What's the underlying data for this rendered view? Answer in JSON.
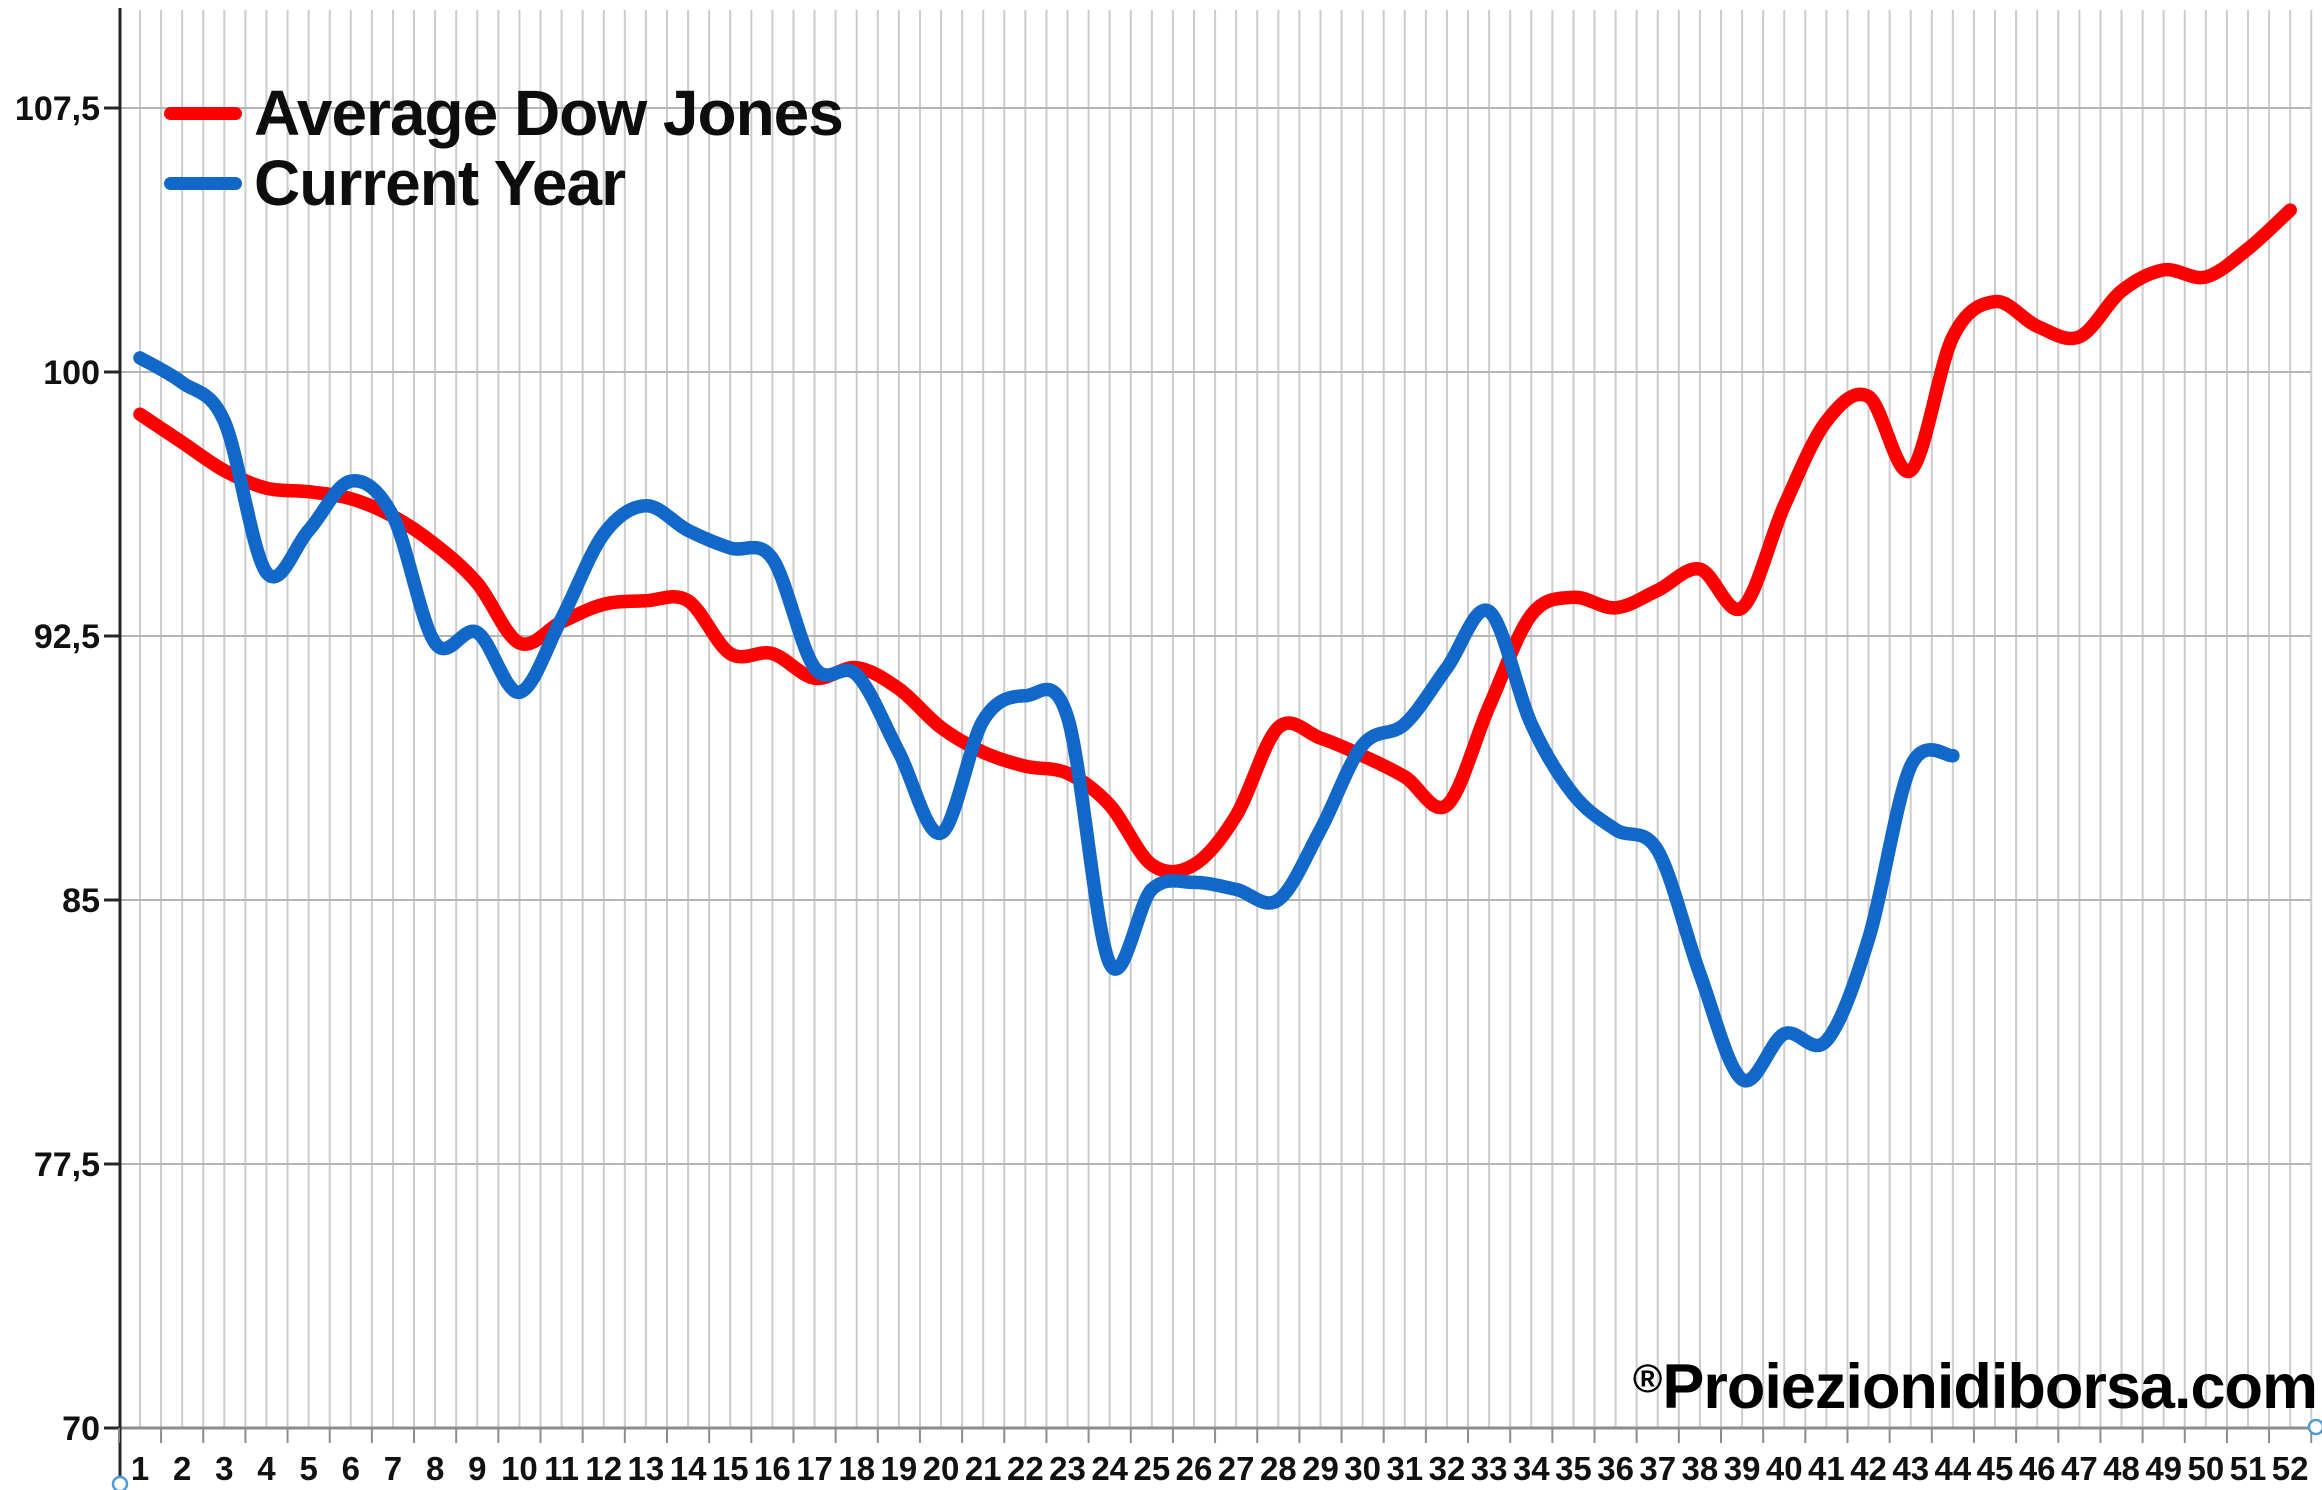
{
  "legend": [
    {
      "label": "Average Dow Jones",
      "color": "#fe0000"
    },
    {
      "label": "Current Year",
      "color": "#1268c9"
    }
  ],
  "watermark_reg": "®",
  "watermark_text": "Proiezionidiborsa.com",
  "chart_data": {
    "type": "line",
    "title": "",
    "xlabel": "",
    "ylabel": "",
    "x": [
      1,
      2,
      3,
      4,
      5,
      6,
      7,
      8,
      9,
      10,
      11,
      12,
      13,
      14,
      15,
      16,
      17,
      18,
      19,
      20,
      21,
      22,
      23,
      24,
      25,
      26,
      27,
      28,
      29,
      30,
      31,
      32,
      33,
      34,
      35,
      36,
      37,
      38,
      39,
      40,
      41,
      42,
      43,
      44,
      45,
      46,
      47,
      48,
      49,
      50,
      51,
      52
    ],
    "x_labels": [
      "1",
      "2",
      "3",
      "4",
      "5",
      "6",
      "7",
      "8",
      "9",
      "10",
      "11",
      "12",
      "13",
      "14",
      "15",
      "16",
      "17",
      "18",
      "19",
      "20",
      "21",
      "22",
      "23",
      "24",
      "25",
      "26",
      "27",
      "28",
      "29",
      "30",
      "31",
      "32",
      "33",
      "34",
      "35",
      "36",
      "37",
      "38",
      "39",
      "40",
      "41",
      "42",
      "43",
      "44",
      "45",
      "46",
      "47",
      "48",
      "49",
      "50",
      "51",
      "52"
    ],
    "series": [
      {
        "name": "Average Dow Jones",
        "color": "#fe0000",
        "values": [
          98.8,
          98.0,
          97.2,
          96.7,
          96.6,
          96.4,
          95.9,
          95.1,
          94.0,
          92.3,
          92.9,
          93.4,
          93.5,
          93.5,
          92.0,
          92.0,
          91.3,
          91.6,
          91.0,
          89.9,
          89.2,
          88.8,
          88.6,
          87.7,
          86.0,
          86.0,
          87.4,
          89.9,
          89.6,
          89.1,
          88.5,
          87.7,
          90.5,
          93.1,
          93.6,
          93.3,
          93.8,
          94.4,
          93.3,
          96.2,
          98.6,
          99.3,
          97.2,
          101.0,
          102.0,
          101.3,
          101.0,
          102.3,
          102.9,
          102.7,
          103.5,
          104.6
        ]
      },
      {
        "name": "Current Year",
        "color": "#1268c9",
        "values": [
          100.4,
          99.7,
          98.6,
          94.3,
          95.5,
          96.9,
          95.9,
          92.3,
          92.6,
          90.9,
          93.0,
          95.4,
          96.2,
          95.5,
          95.0,
          94.7,
          91.6,
          91.4,
          89.2,
          86.9,
          90.1,
          90.8,
          90.2,
          83.2,
          85.3,
          85.5,
          85.3,
          85.0,
          87.0,
          89.4,
          90.0,
          91.6,
          93.2,
          90.0,
          88.0,
          87.0,
          86.4,
          82.9,
          79.9,
          81.2,
          81.0,
          83.9,
          88.8,
          89.1
        ]
      }
    ],
    "y_ticks": [
      70,
      77.5,
      85,
      92.5,
      100,
      107.5
    ],
    "y_tick_labels": [
      "70",
      "77,5",
      "85",
      "92,5",
      "100",
      "107,5"
    ],
    "ylim": [
      70,
      110.3
    ],
    "xlim": [
      0.5,
      52.5
    ],
    "grid": {
      "vertical": "every half week",
      "horizontal": "major ticks only"
    },
    "legend_position": "top-left inside plot",
    "line_smoothing": true
  }
}
